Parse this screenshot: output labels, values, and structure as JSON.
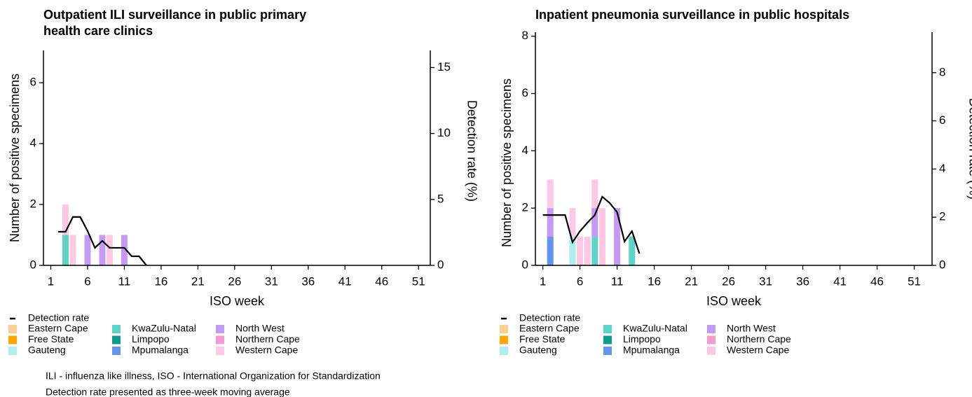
{
  "chart_data": [
    {
      "type": "bar",
      "title": "Outpatient ILI surveillance in public primary health care clinics",
      "xlabel": "ISO week",
      "ylabel": "Number of positive specimens",
      "y2label": "Detection rate (%)",
      "x": [
        1,
        2,
        3,
        4,
        5,
        6,
        7,
        8,
        9,
        10,
        11,
        12,
        13,
        14
      ],
      "xlim": [
        0,
        52.6
      ],
      "xticks": [
        1,
        6,
        11,
        16,
        21,
        26,
        31,
        36,
        41,
        46,
        51
      ],
      "ylim": [
        0,
        7.06
      ],
      "yticks": [
        0,
        2,
        4,
        6
      ],
      "y2lim": [
        0,
        16.3
      ],
      "y2ticks": [
        0,
        5,
        10,
        15
      ],
      "series": [
        {
          "name": "Detection rate",
          "type": "line",
          "axis": "y2",
          "color": "#000000",
          "values": [
            null,
            2.55,
            2.55,
            3.67,
            3.67,
            2.6,
            1.33,
            1.86,
            1.33,
            1.33,
            1.33,
            0.69,
            0.69,
            0
          ]
        },
        {
          "name": "Eastern Cape",
          "color": "#f9d08f",
          "values": [
            0,
            0,
            0,
            0,
            0,
            0,
            0,
            0,
            0,
            0,
            0,
            0,
            0,
            0
          ]
        },
        {
          "name": "Free State",
          "color": "#ffa500",
          "values": [
            0,
            0,
            0,
            0,
            0,
            0,
            0,
            0,
            0,
            0,
            0,
            0,
            0,
            0
          ]
        },
        {
          "name": "Gauteng",
          "color": "#aeeeee",
          "values": [
            0,
            0,
            0,
            0,
            0,
            0,
            0,
            0,
            0,
            0,
            0,
            0,
            0,
            0
          ]
        },
        {
          "name": "KwaZulu-Natal",
          "color": "#5fd3c7",
          "values": [
            0,
            0,
            1,
            0,
            0,
            0,
            0,
            0,
            0,
            0,
            0,
            0,
            0,
            0
          ]
        },
        {
          "name": "Limpopo",
          "color": "#0f9a8e",
          "values": [
            0,
            0,
            0,
            0,
            0,
            0,
            0,
            0,
            0,
            0,
            0,
            0,
            0,
            0
          ]
        },
        {
          "name": "Mpumalanga",
          "color": "#6495ed",
          "values": [
            0,
            0,
            0,
            0,
            0,
            0,
            0,
            0,
            0,
            0,
            0,
            0,
            0,
            0
          ]
        },
        {
          "name": "North West",
          "color": "#c59af5",
          "values": [
            0,
            0,
            0,
            0,
            0,
            1,
            0,
            1,
            0,
            0,
            1,
            0,
            0,
            0
          ]
        },
        {
          "name": "Northern Cape",
          "color": "#f799cf",
          "values": [
            0,
            0,
            0,
            0,
            0,
            0,
            0,
            0,
            0,
            0,
            0,
            0,
            0,
            0
          ]
        },
        {
          "name": "Western Cape",
          "color": "#ffc8e4",
          "values": [
            0,
            0,
            1,
            1,
            0,
            0,
            0,
            0,
            1,
            0,
            0,
            0,
            0,
            0
          ]
        }
      ]
    },
    {
      "type": "bar",
      "title": "Inpatient pneumonia surveillance in public hospitals",
      "xlabel": "ISO week",
      "ylabel": "Number of positive specimens",
      "y2label": "Detection rate (%)",
      "x": [
        1,
        2,
        3,
        4,
        5,
        6,
        7,
        8,
        9,
        10,
        11,
        12,
        13,
        14
      ],
      "xlim": [
        0,
        53.4
      ],
      "xticks": [
        1,
        6,
        11,
        16,
        21,
        26,
        31,
        36,
        41,
        46,
        51
      ],
      "ylim": [
        0,
        8.14
      ],
      "yticks": [
        0,
        2,
        4,
        6,
        8
      ],
      "y2lim": [
        0,
        9.68
      ],
      "y2ticks": [
        0,
        2,
        4,
        6,
        8
      ],
      "series": [
        {
          "name": "Detection rate",
          "type": "line",
          "axis": "y2",
          "color": "#000000",
          "values": [
            2.09,
            2.09,
            2.09,
            2.09,
            0.96,
            1.42,
            1.77,
            2.09,
            2.85,
            2.59,
            2.21,
            0.99,
            1.42,
            0.49
          ]
        },
        {
          "name": "Eastern Cape",
          "color": "#f9d08f",
          "values": [
            0,
            0,
            0,
            0,
            0,
            0,
            0,
            0,
            0,
            0,
            0,
            0,
            0,
            0
          ]
        },
        {
          "name": "Free State",
          "color": "#ffa500",
          "values": [
            0,
            0,
            0,
            0,
            0,
            0,
            0,
            0,
            0,
            0,
            0,
            0,
            0,
            0
          ]
        },
        {
          "name": "Gauteng",
          "color": "#aeeeee",
          "values": [
            0,
            0,
            0,
            0,
            1,
            0,
            0,
            0,
            0,
            0,
            0,
            0,
            0,
            0
          ]
        },
        {
          "name": "KwaZulu-Natal",
          "color": "#5fd3c7",
          "values": [
            0,
            0,
            0,
            0,
            0,
            0,
            0,
            1,
            0,
            0,
            0,
            0,
            1,
            0
          ]
        },
        {
          "name": "Limpopo",
          "color": "#0f9a8e",
          "values": [
            0,
            0,
            0,
            0,
            0,
            0,
            0,
            0,
            0,
            0,
            0,
            0,
            0,
            0
          ]
        },
        {
          "name": "Mpumalanga",
          "color": "#6495ed",
          "values": [
            0,
            1,
            0,
            0,
            0,
            0,
            0,
            0,
            0,
            0,
            0,
            0,
            0,
            0
          ]
        },
        {
          "name": "North West",
          "color": "#c59af5",
          "values": [
            0,
            1,
            0,
            0,
            0,
            0,
            0,
            1,
            0,
            0,
            2,
            0,
            0,
            0
          ]
        },
        {
          "name": "Northern Cape",
          "color": "#f799cf",
          "values": [
            0,
            0,
            0,
            0,
            0,
            0,
            0,
            0,
            0,
            0,
            0,
            0,
            0,
            0
          ]
        },
        {
          "name": "Western Cape",
          "color": "#ffc8e4",
          "values": [
            0,
            1,
            0,
            0,
            1,
            1,
            1,
            1,
            2,
            0,
            0,
            0,
            0,
            0
          ]
        }
      ]
    }
  ],
  "notes": [
    "ILI - influenza like illness, ISO - International Organization for Standardization",
    "Detection rate presented as three-week moving average"
  ]
}
